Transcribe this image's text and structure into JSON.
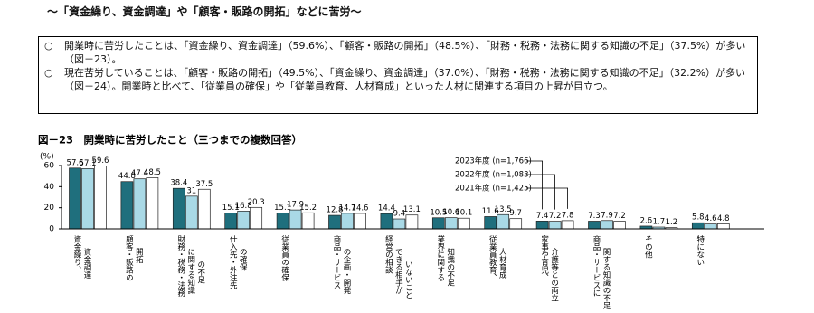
{
  "header": {
    "title": "～「資金繰り、資金調達」や「顧客・販路の開拓」などに苦労～"
  },
  "summary": {
    "marker": "○",
    "paragraphs": [
      "開業時に苦労したことは、「資金繰り、資金調達」（59.6%）、「顧客・販路の開拓」（48.5%）、「財務・税務・法務に関する知識の不足」（37.5%）が多い（図－23）。",
      "現在苦労していることは、「顧客・販路の開拓」（49.5%）、「資金繰り、資金調達」（37.0%）、「財務・税務・法務に関する知識の不足」（32.2%）が多い（図－24）。開業時と比べて、「従業員の確保」や「従業員教育、人材育成」といった人材に関連する項目の上昇が目立つ。"
    ]
  },
  "chart_data": {
    "type": "bar",
    "title": "図－23　開業時に苦労したこと（三つまでの複数回答）",
    "y_label": "(%)",
    "categories": [
      [
        "資金繰り、",
        "資金調達"
      ],
      [
        "顧客・販路の",
        "開拓"
      ],
      [
        "財務・税務・法務",
        "に関する知識",
        "の不足"
      ],
      [
        "仕入先・外注先",
        "の確保"
      ],
      [
        "従業員の確保"
      ],
      [
        "商品・サービス",
        "の企画・開発"
      ],
      [
        "経営の相談",
        "できる相手が",
        "いないこと"
      ],
      [
        "業界に関する",
        "知識の不足"
      ],
      [
        "従業員教育、",
        "人材育成"
      ],
      [
        "家事や育児、",
        "介護等との両立"
      ],
      [
        "商品・サービスに",
        "関する知識の不足"
      ],
      [
        "その他"
      ],
      [
        "特にない"
      ]
    ],
    "series": [
      {
        "name": "2023年度 (n=1,766)",
        "color": "#1f6f7d",
        "values": [
          57.6,
          44.8,
          38.4,
          15.1,
          15.1,
          12.8,
          14.4,
          10.5,
          11.6,
          7.4,
          7.3,
          2.6,
          5.8
        ]
      },
      {
        "name": "2022年度 (n=1,083)",
        "color": "#a9d9e6",
        "values": [
          57.1,
          47.4,
          31.0,
          16.8,
          17.9,
          14.7,
          9.4,
          10.6,
          13.5,
          7.2,
          7.9,
          1.7,
          4.6
        ]
      },
      {
        "name": "2021年度 (n=1,425)",
        "color": "#ffffff",
        "values": [
          59.6,
          48.5,
          37.5,
          20.3,
          15.2,
          14.6,
          13.1,
          10.1,
          9.7,
          7.8,
          7.2,
          1.2,
          4.8
        ]
      }
    ],
    "ylim": [
      0,
      60
    ],
    "yticks": [
      0,
      20,
      40,
      60
    ]
  }
}
